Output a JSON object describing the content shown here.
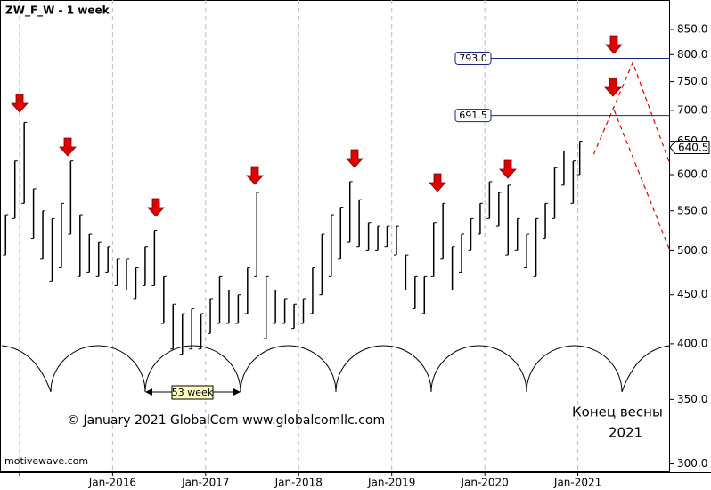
{
  "chart_data": {
    "type": "hilo",
    "title": "ZW_F_W - 1 week",
    "copyright": "© January 2021 GlobalCom www.globalcomllc.com",
    "annotation": [
      "Конец весны",
      "2021"
    ],
    "watermark": "motivewave.com",
    "cycle_label": "53 week",
    "log_scale": true,
    "color": "#000000",
    "x": [
      2014.85,
      2014.95,
      2015.05,
      2015.15,
      2015.25,
      2015.35,
      2015.45,
      2015.55,
      2015.65,
      2015.75,
      2015.85,
      2015.95,
      2016.05,
      2016.15,
      2016.25,
      2016.35,
      2016.45,
      2016.55,
      2016.65,
      2016.75,
      2016.85,
      2016.95,
      2017.05,
      2017.15,
      2017.25,
      2017.35,
      2017.45,
      2017.55,
      2017.65,
      2017.75,
      2017.85,
      2017.95,
      2018.05,
      2018.15,
      2018.25,
      2018.35,
      2018.45,
      2018.55,
      2018.65,
      2018.75,
      2018.85,
      2018.95,
      2019.05,
      2019.15,
      2019.25,
      2019.35,
      2019.45,
      2019.55,
      2019.65,
      2019.75,
      2019.85,
      2019.95,
      2020.05,
      2020.15,
      2020.25,
      2020.35,
      2020.45,
      2020.55,
      2020.65,
      2020.75,
      2020.85,
      2020.95,
      2021.02
    ],
    "high": [
      545,
      620,
      680,
      580,
      550,
      540,
      560,
      620,
      545,
      520,
      510,
      505,
      490,
      490,
      480,
      505,
      525,
      470,
      440,
      430,
      435,
      430,
      445,
      470,
      455,
      450,
      480,
      575,
      470,
      455,
      445,
      440,
      445,
      480,
      520,
      545,
      555,
      590,
      565,
      535,
      530,
      530,
      530,
      495,
      470,
      470,
      535,
      560,
      505,
      520,
      540,
      560,
      590,
      575,
      585,
      540,
      520,
      540,
      560,
      610,
      635,
      620,
      650
    ],
    "low": [
      495,
      540,
      560,
      515,
      490,
      465,
      480,
      520,
      470,
      475,
      470,
      475,
      460,
      455,
      445,
      460,
      460,
      420,
      395,
      390,
      395,
      395,
      410,
      420,
      420,
      420,
      430,
      470,
      405,
      420,
      420,
      415,
      420,
      430,
      450,
      470,
      490,
      510,
      505,
      500,
      500,
      505,
      495,
      455,
      435,
      430,
      470,
      490,
      455,
      475,
      500,
      520,
      540,
      530,
      495,
      500,
      480,
      470,
      515,
      540,
      585,
      560,
      600
    ],
    "levels": [
      {
        "value": 793,
        "label": "793.0"
      },
      {
        "value": 691.5,
        "label": "691.5"
      }
    ],
    "last_price": {
      "value": 640.5,
      "label": "640.5"
    },
    "projections": [
      {
        "color": "#e00000",
        "x": [
          2021.17,
          2021.59,
          2021.99
        ],
        "values": [
          630,
          785,
          615
        ]
      },
      {
        "color": "#e00000",
        "x": [
          2021.39,
          2021.99
        ],
        "values": [
          700,
          500
        ]
      }
    ],
    "xlim": [
      2014.79,
      2021.99
    ],
    "ylim": [
      294,
      912
    ],
    "xticks": [
      {
        "value": 2015,
        "label": null
      },
      {
        "value": 2016,
        "label": "Jan-2016"
      },
      {
        "value": 2017,
        "label": "Jan-2017"
      },
      {
        "value": 2018,
        "label": "Jan-2018"
      },
      {
        "value": 2019,
        "label": "Jan-2019"
      },
      {
        "value": 2020,
        "label": "Jan-2020"
      },
      {
        "value": 2021,
        "label": "Jan-2021"
      }
    ],
    "yticks": [
      {
        "value": 300,
        "label": "300.0"
      },
      {
        "value": 350,
        "label": "350.0"
      },
      {
        "value": 400,
        "label": "400.0"
      },
      {
        "value": 450,
        "label": "450.0"
      },
      {
        "value": 500,
        "label": "500.0"
      },
      {
        "value": 550,
        "label": "550.0"
      },
      {
        "value": 600,
        "label": "600.0"
      },
      {
        "value": 650,
        "label": "650.0"
      },
      {
        "value": 700,
        "label": "700.0"
      },
      {
        "value": 750,
        "label": "750.0"
      },
      {
        "value": 800,
        "label": "800.0"
      },
      {
        "value": 850,
        "label": "850.0"
      }
    ],
    "grid": true
  }
}
